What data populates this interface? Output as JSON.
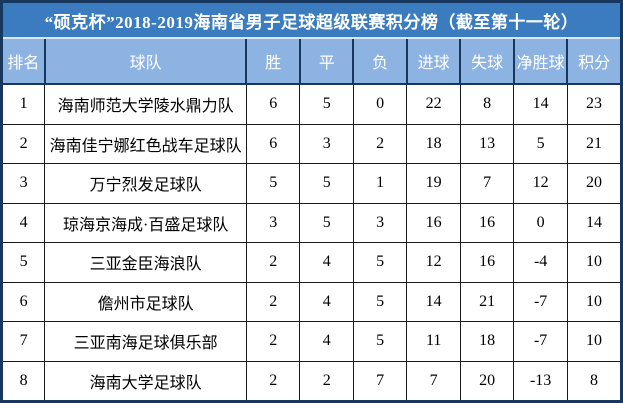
{
  "title": "“硕克杯”2018-2019海南省男子足球超级联赛积分榜（截至第十一轮）",
  "columns": [
    {
      "key": "rank",
      "label": "排名"
    },
    {
      "key": "team",
      "label": "球队"
    },
    {
      "key": "wins",
      "label": "胜"
    },
    {
      "key": "draws",
      "label": "平"
    },
    {
      "key": "losses",
      "label": "负"
    },
    {
      "key": "goals-for",
      "label": "进球"
    },
    {
      "key": "goals-against",
      "label": "失球"
    },
    {
      "key": "goal-difference",
      "label": "净胜球"
    },
    {
      "key": "points",
      "label": "积分"
    }
  ],
  "colors": {
    "title_bg": "#3a7cbf",
    "header_bg": "#8db3e2",
    "outer_border": "#17375e",
    "cell_border": "#1a1a1a",
    "header_text": "#ffffff",
    "body_text": "#000000"
  },
  "chart_data": {
    "type": "table",
    "title": "“硕克杯”2018-2019海南省男子足球超级联赛积分榜（截至第十一轮）",
    "columns": [
      "排名",
      "球队",
      "胜",
      "平",
      "负",
      "进球",
      "失球",
      "净胜球",
      "积分"
    ],
    "rows": [
      [
        1,
        "海南师范大学陵水鼎力队",
        6,
        5,
        0,
        22,
        8,
        14,
        23
      ],
      [
        2,
        "海南佳宁娜红色战车足球队",
        6,
        3,
        2,
        18,
        13,
        5,
        21
      ],
      [
        3,
        "万宁烈发足球队",
        5,
        5,
        1,
        19,
        7,
        12,
        20
      ],
      [
        4,
        "琼海京海成·百盛足球队",
        3,
        5,
        3,
        16,
        16,
        0,
        14
      ],
      [
        5,
        "三亚金臣海浪队",
        2,
        4,
        5,
        12,
        16,
        -4,
        10
      ],
      [
        6,
        "儋州市足球队",
        2,
        4,
        5,
        14,
        21,
        -7,
        10
      ],
      [
        7,
        "三亚南海足球俱乐部",
        2,
        4,
        5,
        11,
        18,
        -7,
        10
      ],
      [
        8,
        "海南大学足球队",
        2,
        2,
        7,
        7,
        20,
        -13,
        8
      ]
    ]
  }
}
